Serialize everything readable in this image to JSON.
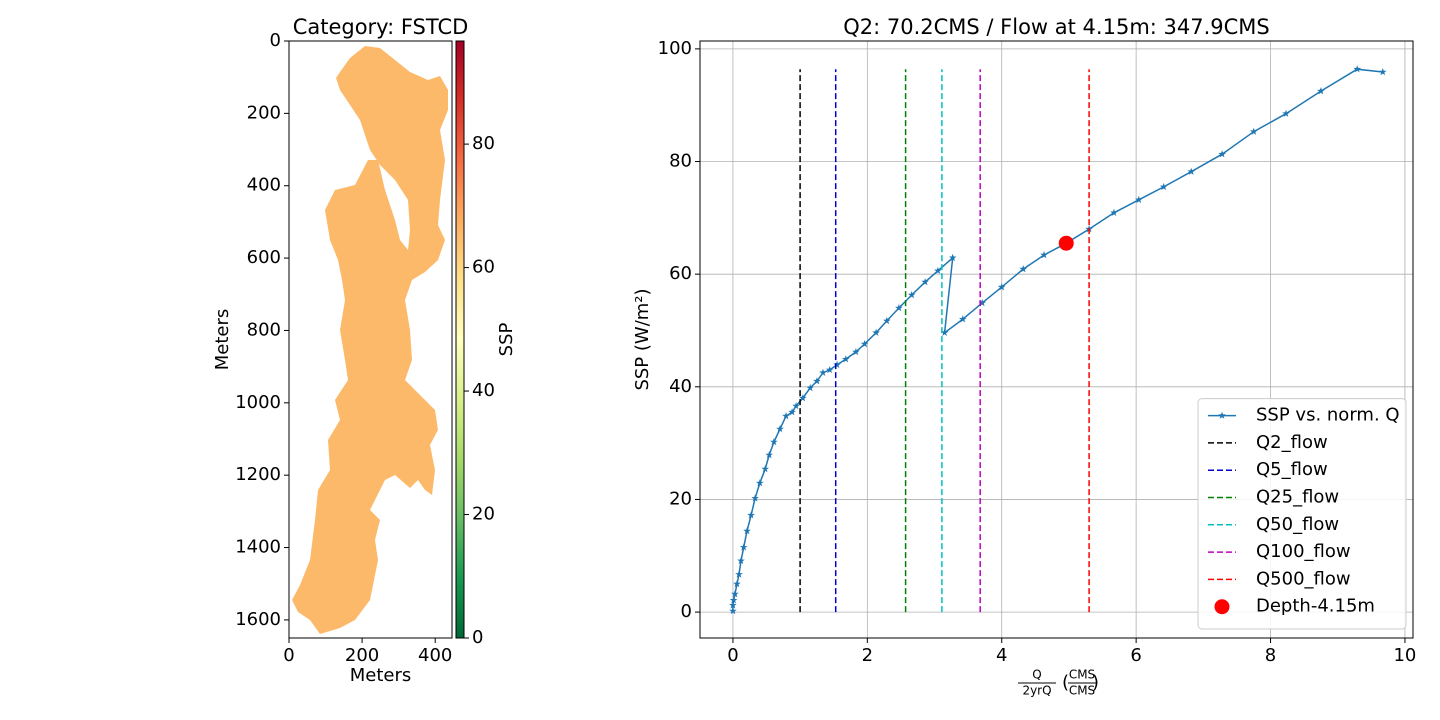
{
  "chart_data": [
    {
      "type": "image",
      "title": "Category: FSTCD",
      "xlabel": "Meters",
      "ylabel": "Meters",
      "xlim": [
        0,
        446
      ],
      "ylim": [
        1650,
        0
      ],
      "xticks": [
        0,
        200,
        400
      ],
      "yticks": [
        0,
        200,
        400,
        600,
        800,
        1000,
        1200,
        1400,
        1600
      ],
      "color": "#fdb96a",
      "colorbar": {
        "label": "SSP",
        "lim": [
          0,
          96.7
        ],
        "ticks": [
          0,
          20,
          40,
          60,
          80
        ],
        "colors": [
          "#006837",
          "#1a9850",
          "#66bd63",
          "#a6d96a",
          "#d9ef8b",
          "#ffffbf",
          "#fee08b",
          "#fdae61",
          "#f46d43",
          "#d73027",
          "#a50026"
        ]
      }
    },
    {
      "type": "line",
      "title": "Q2: 70.2CMS / Flow at 4.15m: 347.9CMS",
      "xlabel": {
        "numerator": "Q",
        "denominator": "2yrQ",
        "unit_numerator": "CMS",
        "unit_denominator": "CMS"
      },
      "ylabel": "SSP (W/m²)",
      "xlim": [
        -0.49,
        10.12
      ],
      "ylim": [
        -4.6,
        101.4
      ],
      "xticks": [
        0,
        2,
        4,
        6,
        8,
        10
      ],
      "yticks": [
        0,
        20,
        40,
        60,
        80,
        100
      ],
      "grid": true,
      "legend": "lower right",
      "series": [
        {
          "name": "SSP vs. norm. Q",
          "color": "#1f77b4",
          "style": "line-star",
          "x": [
            0,
            0,
            0.01,
            0.03,
            0.06,
            0.09,
            0.12,
            0.16,
            0.21,
            0.27,
            0.33,
            0.4,
            0.48,
            0.54,
            0.61,
            0.7,
            0.79,
            0.88,
            0.94,
            1.04,
            1.15,
            1.25,
            1.34,
            1.44,
            1.55,
            1.68,
            1.83,
            1.96,
            2.13,
            2.29,
            2.47,
            2.66,
            2.86,
            3.05,
            3.27,
            3.15,
            3.42,
            3.71,
            4.0,
            4.32,
            4.63,
            4.96,
            5.3,
            5.67,
            6.04,
            6.41,
            6.82,
            7.28,
            7.75,
            8.23,
            8.75,
            9.29,
            9.67
          ],
          "values": [
            0.2,
            1.2,
            2.1,
            3.2,
            5,
            6.7,
            9.1,
            11.5,
            14.4,
            17.2,
            20.2,
            22.9,
            25.4,
            27.9,
            30.2,
            32.5,
            34.8,
            35.5,
            36.6,
            38,
            39.8,
            41,
            42.5,
            43,
            43.9,
            44.9,
            46.2,
            47.6,
            49.6,
            51.7,
            54,
            56.3,
            58.6,
            60.6,
            62.9,
            49.6,
            52,
            54.9,
            57.7,
            60.9,
            63.4,
            65.5,
            68,
            70.9,
            73.2,
            75.5,
            78.2,
            81.3,
            85.3,
            88.5,
            92.5,
            96.4,
            95.9
          ]
        },
        {
          "name": "Q2_flow",
          "color": "#000000",
          "style": "dashed",
          "x": [
            1.0,
            1.0
          ],
          "values": [
            0,
            96.4
          ]
        },
        {
          "name": "Q5_flow",
          "color": "#0000cc",
          "style": "dashed",
          "x": [
            1.53,
            1.53
          ],
          "values": [
            0,
            96.4
          ]
        },
        {
          "name": "Q25_flow",
          "color": "#008000",
          "style": "dashed",
          "x": [
            2.57,
            2.57
          ],
          "values": [
            0,
            96.4
          ]
        },
        {
          "name": "Q50_flow",
          "color": "#00c0c0",
          "style": "dashed",
          "x": [
            3.11,
            3.11
          ],
          "values": [
            0,
            96.4
          ]
        },
        {
          "name": "Q100_flow",
          "color": "#c000c0",
          "style": "dashed",
          "x": [
            3.68,
            3.68
          ],
          "values": [
            0,
            96.4
          ]
        },
        {
          "name": "Q500_flow",
          "color": "#ff0000",
          "style": "dashed",
          "x": [
            5.3,
            5.3
          ],
          "values": [
            0,
            96.4
          ]
        },
        {
          "name": "Depth-4.15m",
          "color": "#ff0000",
          "style": "dot",
          "x": [
            4.96
          ],
          "values": [
            65.5
          ]
        }
      ]
    }
  ]
}
